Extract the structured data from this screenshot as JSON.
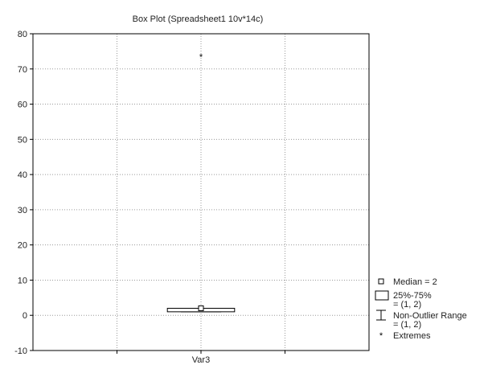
{
  "chart_data": {
    "type": "box",
    "title": "Box Plot (Spreadsheet1 10v*14c)",
    "xlabel": "",
    "ylabel": "",
    "ylim": [
      -10,
      80
    ],
    "yticks": [
      80,
      70,
      60,
      50,
      40,
      30,
      20,
      10,
      0,
      -10
    ],
    "grid": true,
    "legend_position": "bottom-right",
    "categories": [
      "Var3"
    ],
    "boxes": [
      {
        "name": "Var3",
        "median": 2,
        "q1": 1,
        "q3": 2,
        "whisker_low": 1,
        "whisker_high": 2,
        "extremes": [
          73.5
        ]
      }
    ],
    "legend": [
      {
        "symbol": "median",
        "lines": [
          "Median = 2"
        ]
      },
      {
        "symbol": "box",
        "lines": [
          "25%-75%",
          "= (1, 2)"
        ]
      },
      {
        "symbol": "whisker",
        "lines": [
          "Non-Outlier Range",
          "= (1, 2)"
        ]
      },
      {
        "symbol": "extreme",
        "lines": [
          "Extremes"
        ]
      }
    ]
  }
}
